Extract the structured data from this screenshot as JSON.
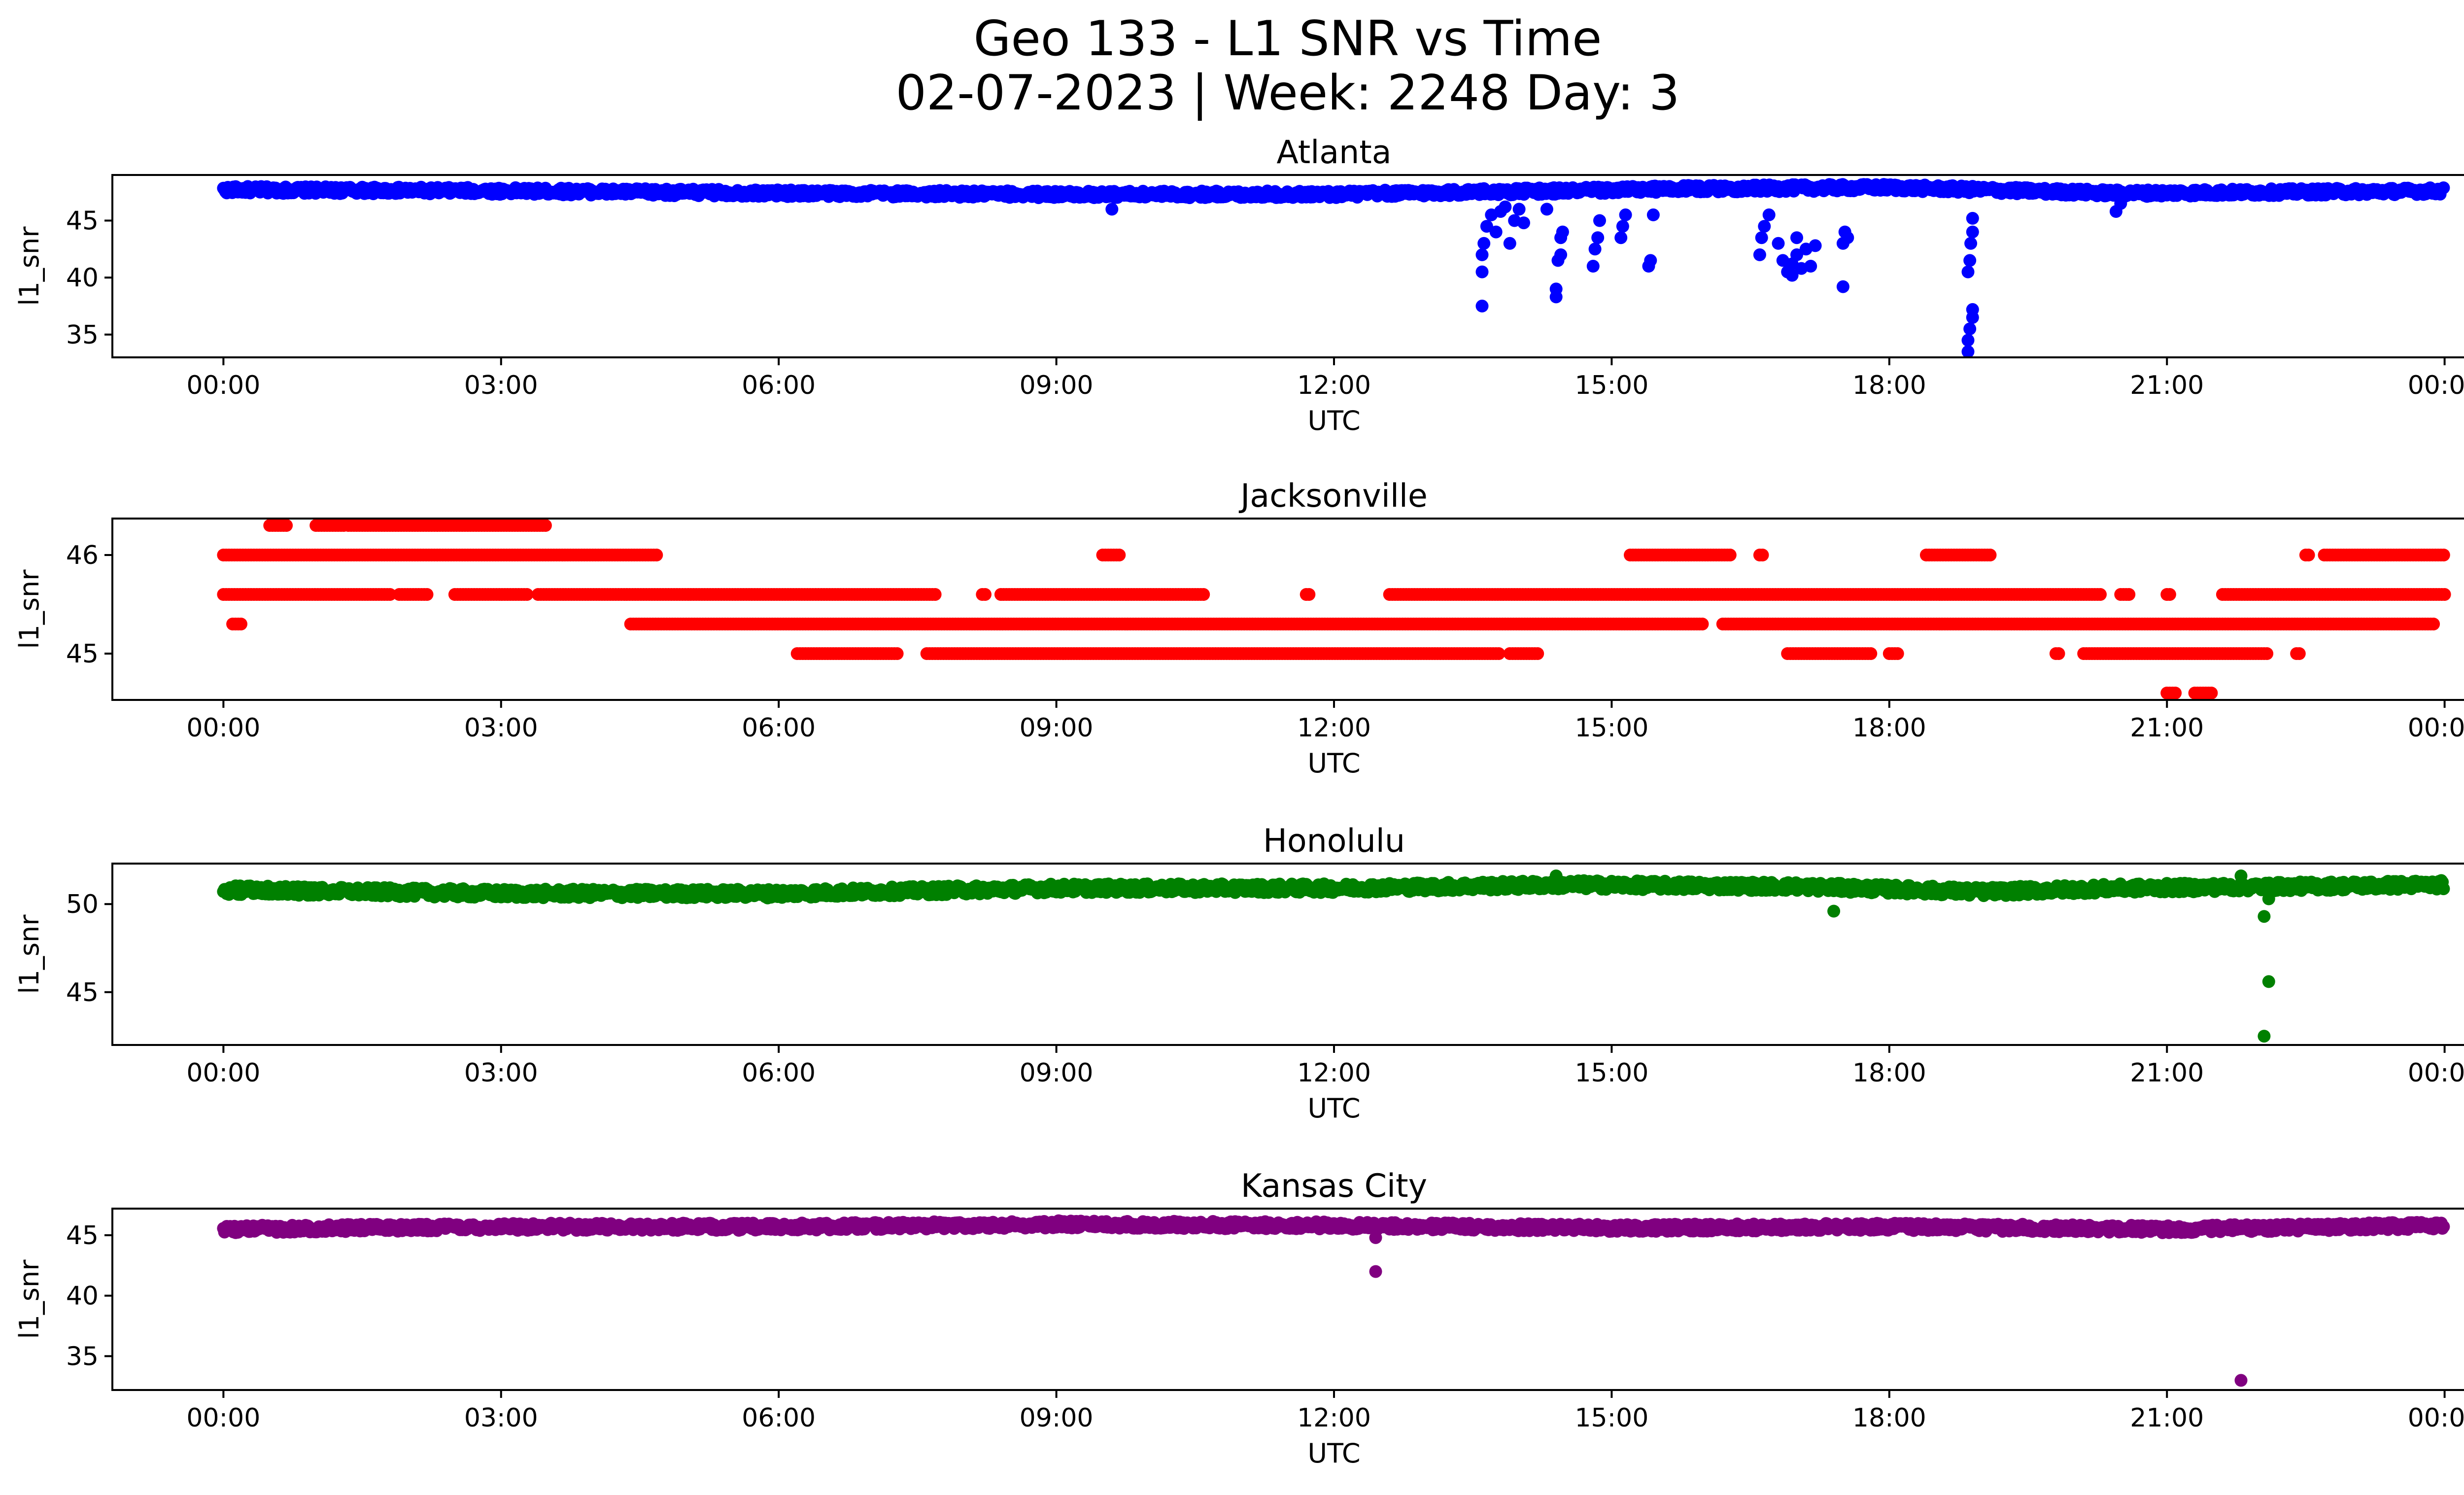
{
  "figure": {
    "title_line1": "Geo 133 - L1 SNR vs Time",
    "title_line2": "02-07-2023 | Week: 2248 Day: 3"
  },
  "chart_data": [
    {
      "type": "scatter",
      "title": "Atlanta",
      "xlabel": "UTC",
      "ylabel": "l1_snr",
      "color": "#0000ff",
      "xlim": [
        -1.2,
        25.2
      ],
      "ylim": [
        33.0,
        49.0
      ],
      "x_ticks": [
        "00:00",
        "03:00",
        "06:00",
        "09:00",
        "12:00",
        "15:00",
        "18:00",
        "21:00",
        "00:00"
      ],
      "y_ticks": [
        35,
        40,
        45
      ],
      "baseline": [
        [
          0,
          47.7
        ],
        [
          3,
          47.6
        ],
        [
          6,
          47.4
        ],
        [
          9,
          47.3
        ],
        [
          12,
          47.3
        ],
        [
          13.5,
          47.5
        ],
        [
          16,
          47.8
        ],
        [
          18,
          47.9
        ],
        [
          20.5,
          47.4
        ],
        [
          24,
          47.6
        ]
      ],
      "band": 0.6,
      "outliers": [
        [
          9.6,
          46.0
        ],
        [
          13.6,
          37.5
        ],
        [
          13.6,
          40.5
        ],
        [
          13.6,
          42.0
        ],
        [
          13.62,
          43.0
        ],
        [
          13.65,
          44.5
        ],
        [
          13.7,
          45.5
        ],
        [
          13.75,
          44.0
        ],
        [
          13.8,
          45.8
        ],
        [
          13.85,
          46.2
        ],
        [
          13.9,
          43.0
        ],
        [
          13.95,
          45.0
        ],
        [
          14.0,
          46.0
        ],
        [
          14.05,
          44.8
        ],
        [
          14.3,
          46.0
        ],
        [
          14.4,
          38.3
        ],
        [
          14.4,
          39.0
        ],
        [
          14.42,
          41.5
        ],
        [
          14.45,
          42.0
        ],
        [
          14.45,
          43.5
        ],
        [
          14.47,
          44.0
        ],
        [
          14.8,
          41.0
        ],
        [
          14.82,
          42.5
        ],
        [
          14.85,
          43.5
        ],
        [
          14.87,
          45.0
        ],
        [
          15.1,
          43.5
        ],
        [
          15.12,
          44.5
        ],
        [
          15.15,
          45.5
        ],
        [
          15.4,
          41.0
        ],
        [
          15.42,
          41.5
        ],
        [
          15.45,
          45.5
        ],
        [
          16.6,
          42.0
        ],
        [
          16.62,
          43.5
        ],
        [
          16.65,
          44.5
        ],
        [
          16.7,
          45.5
        ],
        [
          16.8,
          43.0
        ],
        [
          16.85,
          41.5
        ],
        [
          16.9,
          40.5
        ],
        [
          16.95,
          41.2
        ],
        [
          17.0,
          42.0
        ],
        [
          17.05,
          40.8
        ],
        [
          17.1,
          42.5
        ],
        [
          17.15,
          41.0
        ],
        [
          17.2,
          42.8
        ],
        [
          17.0,
          43.5
        ],
        [
          16.95,
          40.2
        ],
        [
          17.5,
          39.2
        ],
        [
          17.5,
          43.0
        ],
        [
          17.52,
          44.0
        ],
        [
          17.55,
          43.5
        ],
        [
          18.85,
          33.5
        ],
        [
          18.85,
          34.5
        ],
        [
          18.87,
          35.5
        ],
        [
          18.9,
          36.5
        ],
        [
          18.9,
          37.2
        ],
        [
          18.85,
          40.5
        ],
        [
          18.87,
          41.5
        ],
        [
          18.88,
          43.0
        ],
        [
          18.9,
          44.0
        ],
        [
          18.9,
          45.2
        ],
        [
          20.45,
          45.8
        ],
        [
          20.5,
          46.5
        ]
      ]
    },
    {
      "type": "scatter",
      "title": "Jacksonville",
      "xlabel": "UTC",
      "ylabel": "l1_snr",
      "color": "#ff0000",
      "xlim": [
        -1.2,
        25.2
      ],
      "ylim": [
        44.53,
        46.37
      ],
      "x_ticks": [
        "00:00",
        "03:00",
        "06:00",
        "09:00",
        "12:00",
        "15:00",
        "18:00",
        "21:00",
        "00:00"
      ],
      "y_ticks": [
        45,
        46
      ],
      "levels": [
        {
          "y": 46.3,
          "ranges": [
            [
              0.5,
              0.7
            ],
            [
              1.0,
              1.3
            ],
            [
              1.35,
              3.5
            ]
          ]
        },
        {
          "y": 46.0,
          "ranges": [
            [
              0.0,
              4.7
            ],
            [
              9.5,
              9.7
            ],
            [
              15.2,
              16.3
            ],
            [
              16.6,
              16.65
            ],
            [
              18.4,
              19.1
            ],
            [
              22.5,
              22.55
            ],
            [
              22.7,
              24.0
            ]
          ]
        },
        {
          "y": 45.6,
          "ranges": [
            [
              0.0,
              1.8
            ],
            [
              1.9,
              2.2
            ],
            [
              2.5,
              3.3
            ],
            [
              3.4,
              7.7
            ],
            [
              8.2,
              8.25
            ],
            [
              8.4,
              10.6
            ],
            [
              11.7,
              11.75
            ],
            [
              12.6,
              20.3
            ],
            [
              20.5,
              20.6
            ],
            [
              21.0,
              21.05
            ],
            [
              21.6,
              24.0
            ]
          ]
        },
        {
          "y": 45.3,
          "ranges": [
            [
              0.1,
              0.2
            ],
            [
              4.4,
              16.0
            ],
            [
              16.2,
              23.9
            ]
          ]
        },
        {
          "y": 45.0,
          "ranges": [
            [
              6.2,
              7.3
            ],
            [
              7.6,
              13.8
            ],
            [
              13.9,
              14.2
            ],
            [
              16.9,
              17.8
            ],
            [
              18.0,
              18.1
            ],
            [
              19.8,
              19.85
            ],
            [
              20.1,
              22.1
            ],
            [
              22.4,
              22.45
            ]
          ]
        },
        {
          "y": 44.6,
          "ranges": [
            [
              21.0,
              21.1
            ],
            [
              21.3,
              21.5
            ]
          ]
        }
      ]
    },
    {
      "type": "scatter",
      "title": "Honolulu",
      "xlabel": "UTC",
      "ylabel": "l1_snr",
      "color": "#008000",
      "xlim": [
        -1.2,
        25.2
      ],
      "ylim": [
        42.0,
        52.3
      ],
      "x_ticks": [
        "00:00",
        "03:00",
        "06:00",
        "09:00",
        "12:00",
        "15:00",
        "18:00",
        "21:00",
        "00:00"
      ],
      "y_ticks": [
        45,
        50
      ],
      "baseline": [
        [
          0,
          50.8
        ],
        [
          3,
          50.6
        ],
        [
          6,
          50.6
        ],
        [
          9,
          50.9
        ],
        [
          12,
          50.9
        ],
        [
          14.5,
          51.1
        ],
        [
          17,
          51.0
        ],
        [
          19,
          50.7
        ],
        [
          20.5,
          50.9
        ],
        [
          24,
          51.1
        ]
      ],
      "band": 0.5,
      "outliers": [
        [
          17.4,
          49.6
        ],
        [
          22.05,
          49.3
        ],
        [
          22.1,
          50.3
        ],
        [
          22.1,
          45.6
        ],
        [
          22.05,
          42.5
        ],
        [
          21.8,
          51.6
        ],
        [
          14.4,
          51.6
        ]
      ]
    },
    {
      "type": "scatter",
      "title": "Kansas City",
      "xlabel": "UTC",
      "ylabel": "l1_snr",
      "color": "#800080",
      "xlim": [
        -1.2,
        25.2
      ],
      "ylim": [
        32.2,
        47.2
      ],
      "x_ticks": [
        "00:00",
        "03:00",
        "06:00",
        "09:00",
        "12:00",
        "15:00",
        "18:00",
        "21:00",
        "00:00"
      ],
      "y_ticks": [
        35,
        40,
        45
      ],
      "baseline": [
        [
          0,
          45.5
        ],
        [
          3,
          45.7
        ],
        [
          6,
          45.7
        ],
        [
          9,
          45.9
        ],
        [
          12,
          45.8
        ],
        [
          15,
          45.6
        ],
        [
          18,
          45.7
        ],
        [
          21,
          45.5
        ],
        [
          24,
          45.8
        ]
      ],
      "band": 0.6,
      "outliers": [
        [
          12.45,
          42.0
        ],
        [
          12.45,
          44.8
        ],
        [
          21.8,
          33.0
        ]
      ]
    }
  ]
}
